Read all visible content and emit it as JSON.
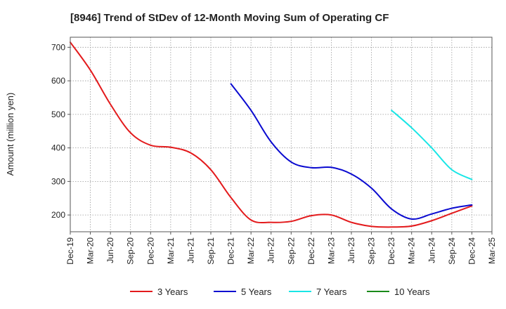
{
  "chart_data": {
    "type": "line",
    "title": "[8946]  Trend of StDev of 12-Month Moving Sum of Operating CF",
    "ylabel": "Amount (million yen)",
    "xlabel": "",
    "ylim": [
      150,
      730
    ],
    "yticks": [
      200,
      300,
      400,
      500,
      600,
      700
    ],
    "xticks": [
      "Dec-19",
      "Mar-20",
      "Jun-20",
      "Sep-20",
      "Dec-20",
      "Mar-21",
      "Jun-21",
      "Sep-21",
      "Dec-21",
      "Mar-22",
      "Jun-22",
      "Sep-22",
      "Dec-22",
      "Mar-23",
      "Jun-23",
      "Sep-23",
      "Dec-23",
      "Mar-24",
      "Jun-24",
      "Sep-24",
      "Dec-24",
      "Mar-25"
    ],
    "grid": true,
    "legend_position": "bottom",
    "series": [
      {
        "name": "3 Years",
        "color": "#e31a1c",
        "points": [
          [
            "Dec-19",
            715
          ],
          [
            "Mar-20",
            632
          ],
          [
            "Jun-20",
            530
          ],
          [
            "Sep-20",
            445
          ],
          [
            "Dec-20",
            408
          ],
          [
            "Mar-21",
            402
          ],
          [
            "Jun-21",
            385
          ],
          [
            "Sep-21",
            335
          ],
          [
            "Dec-21",
            252
          ],
          [
            "Mar-22",
            185
          ],
          [
            "Jun-22",
            178
          ],
          [
            "Sep-22",
            181
          ],
          [
            "Dec-22",
            198
          ],
          [
            "Mar-23",
            200
          ],
          [
            "Jun-23",
            178
          ],
          [
            "Sep-23",
            166
          ],
          [
            "Dec-23",
            164
          ],
          [
            "Mar-24",
            167
          ],
          [
            "Jun-24",
            183
          ],
          [
            "Sep-24",
            205
          ],
          [
            "Dec-24",
            227
          ]
        ]
      },
      {
        "name": "5 Years",
        "color": "#0a0ad0",
        "points": [
          [
            "Dec-21",
            591
          ],
          [
            "Mar-22",
            512
          ],
          [
            "Jun-22",
            418
          ],
          [
            "Sep-22",
            358
          ],
          [
            "Dec-22",
            341
          ],
          [
            "Mar-23",
            342
          ],
          [
            "Jun-23",
            322
          ],
          [
            "Sep-23",
            280
          ],
          [
            "Dec-23",
            218
          ],
          [
            "Mar-24",
            188
          ],
          [
            "Jun-24",
            203
          ],
          [
            "Sep-24",
            220
          ],
          [
            "Dec-24",
            230
          ]
        ]
      },
      {
        "name": "7 Years",
        "color": "#19e6e6",
        "points": [
          [
            "Dec-23",
            512
          ],
          [
            "Mar-24",
            460
          ],
          [
            "Jun-24",
            400
          ],
          [
            "Sep-24",
            335
          ],
          [
            "Dec-24",
            306
          ]
        ]
      },
      {
        "name": "10 Years",
        "color": "#1a8a1a",
        "points": []
      }
    ]
  }
}
